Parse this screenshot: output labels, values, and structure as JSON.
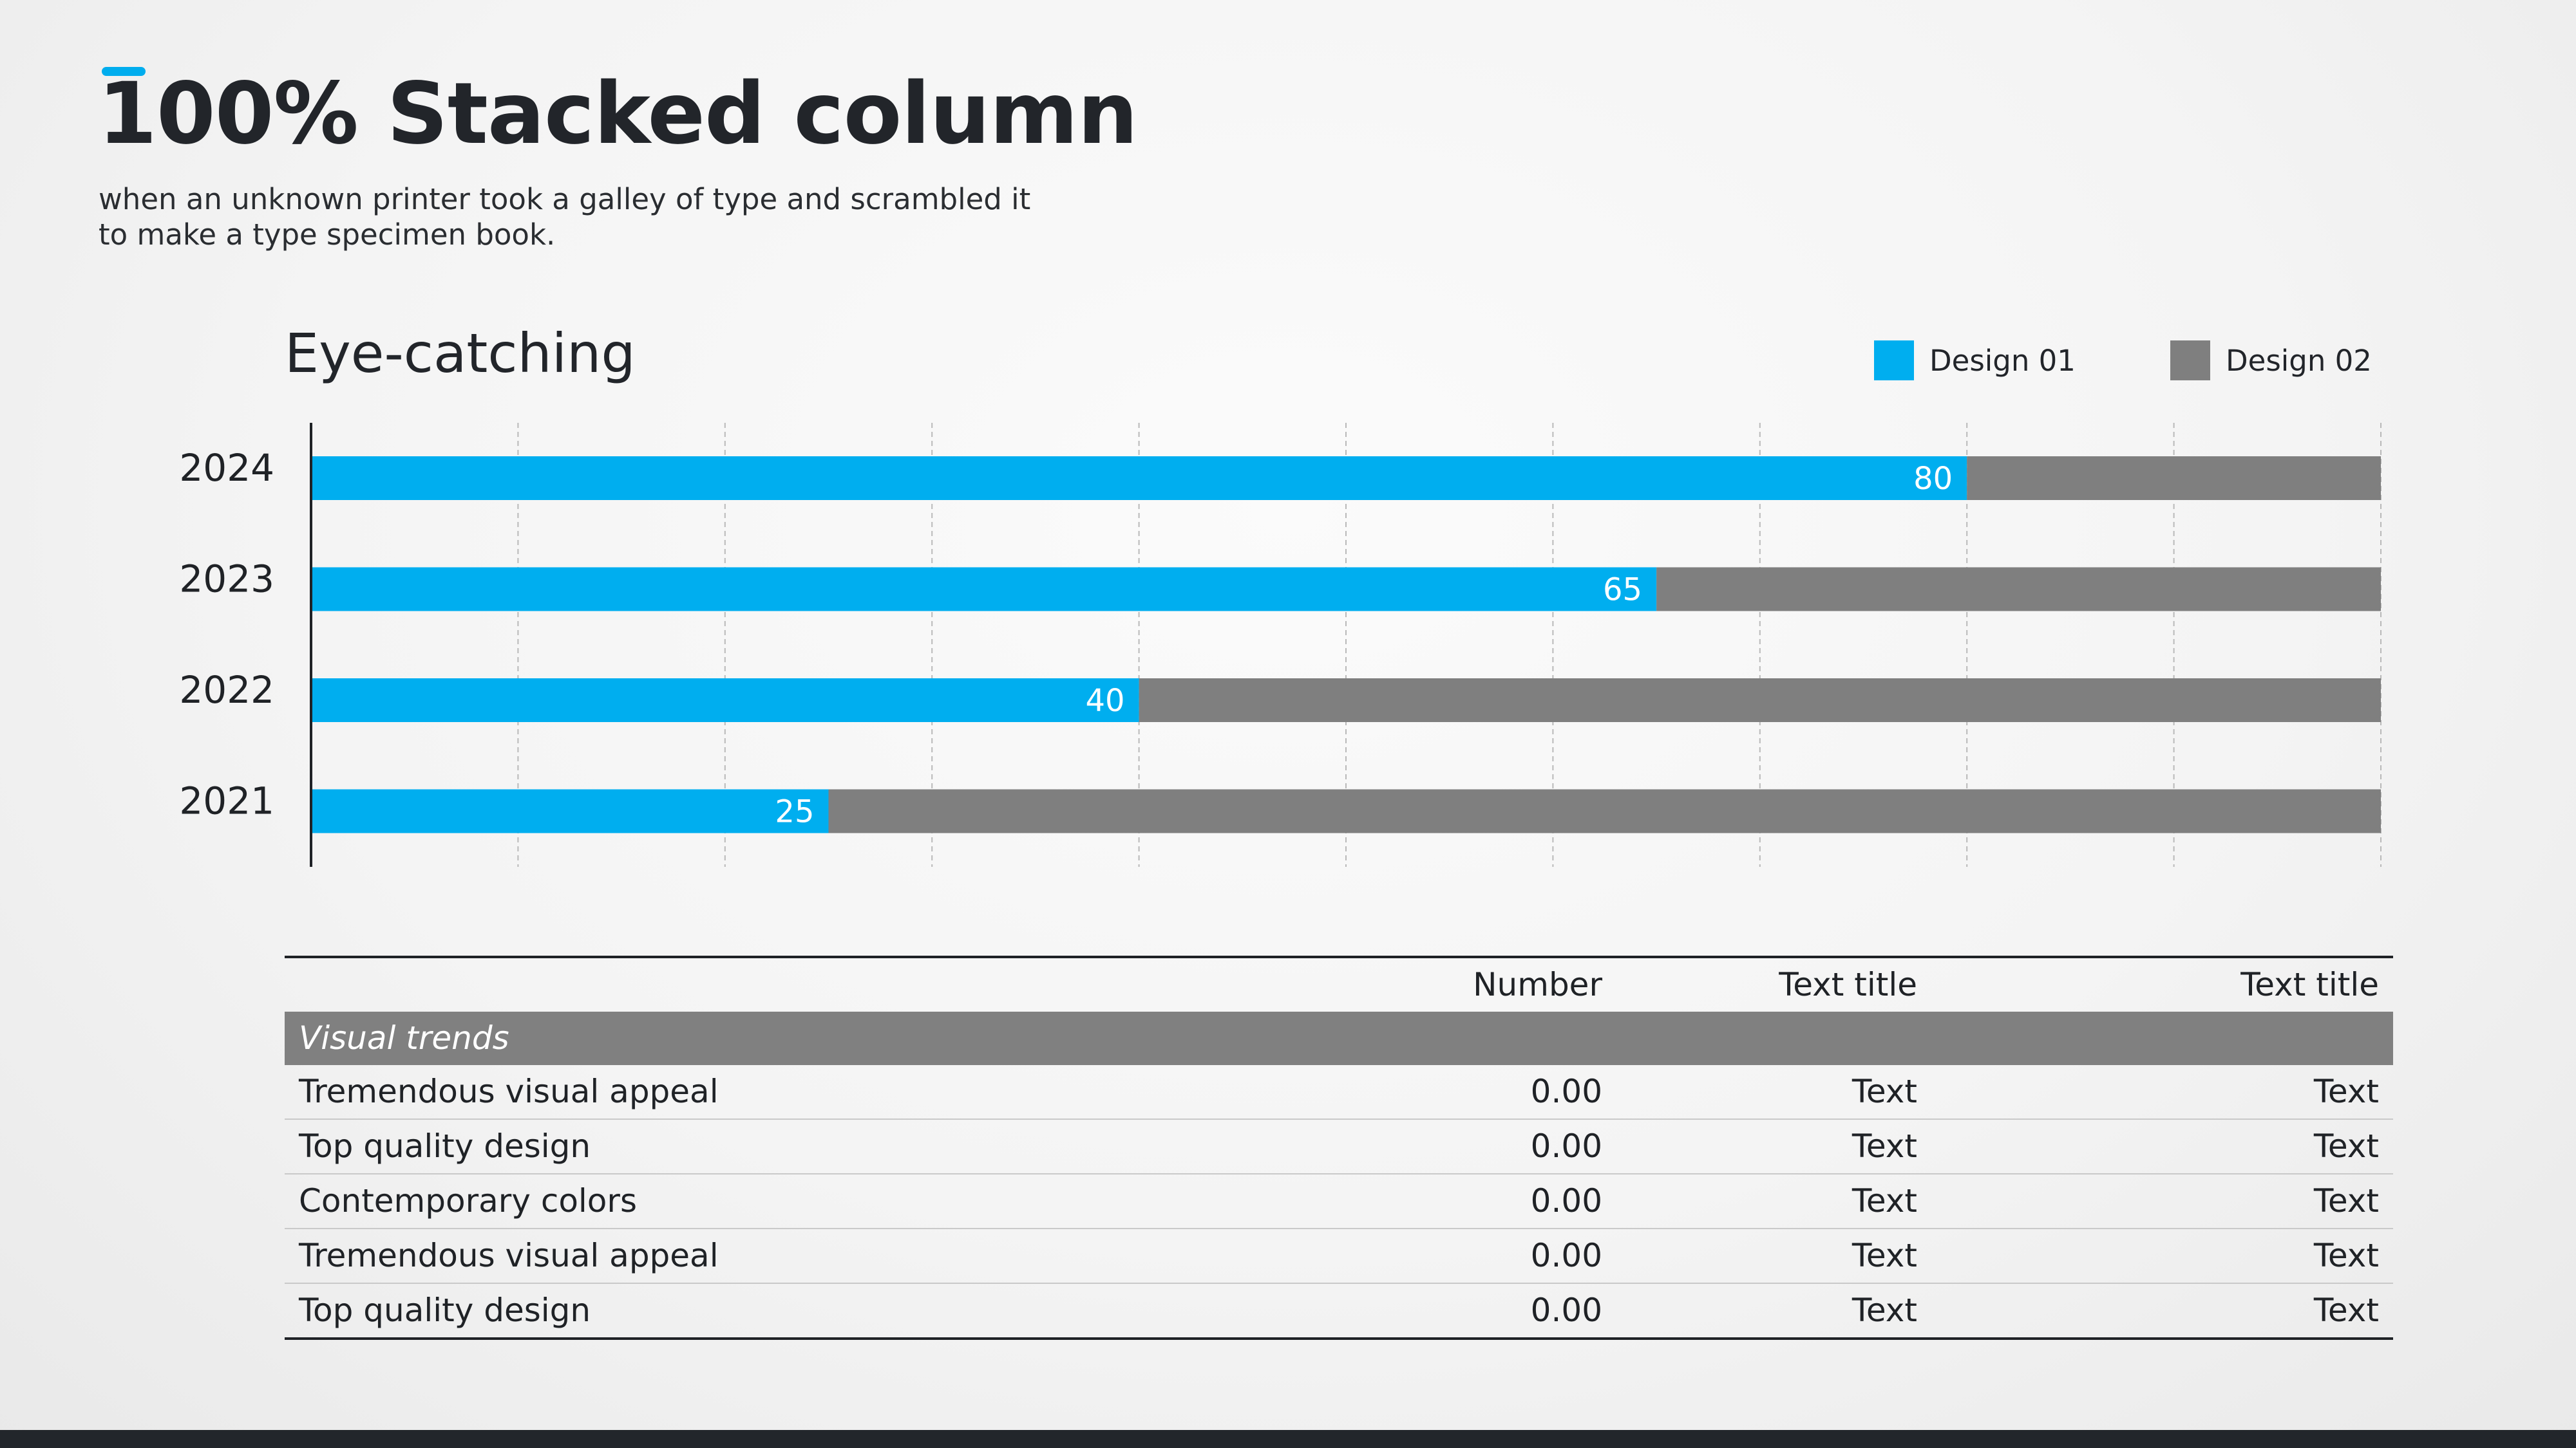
{
  "header": {
    "title": "100% Stacked column",
    "subtitle": "when an unknown printer took a galley of type and scrambled it to make a type specimen book."
  },
  "chart_title": "Eye-catching",
  "legend": [
    "Design 01",
    "Design 02"
  ],
  "colors": {
    "accent": "#00adee",
    "design01": "#00aeef",
    "design02": "#7f7f7f",
    "section": "#808080"
  },
  "chart_data": {
    "type": "bar",
    "orientation": "horizontal",
    "stacked": "percent",
    "title": "Eye-catching",
    "categories": [
      "2024",
      "2023",
      "2022",
      "2021"
    ],
    "series": [
      {
        "name": "Design 01",
        "values": [
          80,
          65,
          40,
          25
        ]
      },
      {
        "name": "Design 02",
        "values": [
          20,
          35,
          60,
          75
        ]
      }
    ],
    "xlim": [
      0,
      100
    ],
    "grid": "vertical dashed every 10",
    "legend_position": "top-right",
    "data_labels": "Design 01 values shown inside bar end"
  },
  "table": {
    "headers": [
      "",
      "Number",
      "Text title",
      "Text title"
    ],
    "section_label": "Visual trends",
    "rows": [
      [
        "Tremendous visual appeal",
        "0.00",
        "Text",
        "Text"
      ],
      [
        "Top quality design",
        "0.00",
        "Text",
        "Text"
      ],
      [
        "Contemporary colors",
        "0.00",
        "Text",
        "Text"
      ],
      [
        "Tremendous visual appeal",
        "0.00",
        "Text",
        "Text"
      ],
      [
        "Top quality design",
        "0.00",
        "Text",
        "Text"
      ]
    ]
  }
}
